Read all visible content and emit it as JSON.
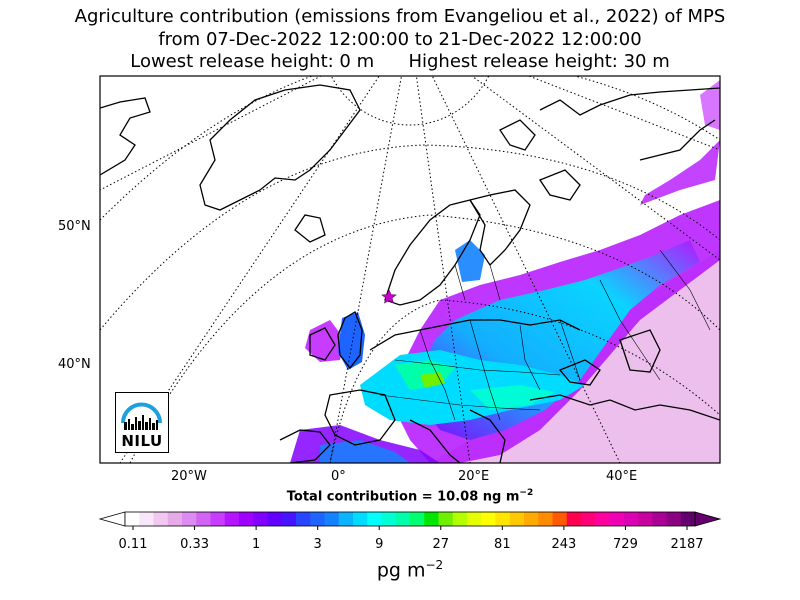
{
  "title": {
    "line1": "Agriculture contribution (emissions from Evangeliou et al., 2022) of MPS",
    "line2": "from 07-Dec-2022 12:00:00 to 21-Dec-2022 12:00:00",
    "line3": "Lowest release height: 0 m      Highest release height: 30 m"
  },
  "map": {
    "lat_labels": [
      "50°N",
      "40°N"
    ],
    "lon_labels": [
      "20°W",
      "0°",
      "20°E",
      "40°E"
    ],
    "release_marker_icon": "star-icon",
    "logo_text": "NILU",
    "colors": {
      "land_outline": "#000000",
      "graticule": "#000000",
      "release_marker": "#cc00cc"
    }
  },
  "total_contribution": {
    "label": "Total contribution = 10.08 ng m",
    "exponent": "−2"
  },
  "colorbar": {
    "ticks": [
      "0.11",
      "0.33",
      "1",
      "3",
      "9",
      "27",
      "81",
      "243",
      "729",
      "2187"
    ],
    "unit": "pg m",
    "unit_exponent": "−2",
    "colors": [
      "#ffffff",
      "#fae6fa",
      "#f0c8f0",
      "#e6aae6",
      "#dc8cf0",
      "#d264f5",
      "#c83cff",
      "#b414ff",
      "#a000ff",
      "#8200ff",
      "#6400ff",
      "#4614ff",
      "#2846ff",
      "#1e64ff",
      "#1482ff",
      "#0ab4ff",
      "#00dcff",
      "#00ffff",
      "#00ffd2",
      "#00ffaa",
      "#00ff6e",
      "#00e600",
      "#6ef000",
      "#b4ff00",
      "#e6ff00",
      "#ffff00",
      "#ffe600",
      "#ffc800",
      "#ffaa00",
      "#ff8c00",
      "#ff5a00",
      "#ff0050",
      "#ff0078",
      "#ff00a0",
      "#f000b4",
      "#dc00b4",
      "#c800a0",
      "#aa0096",
      "#8c0082",
      "#64006e"
    ],
    "under_color": "#ffffff",
    "over_color": "#64006e"
  }
}
